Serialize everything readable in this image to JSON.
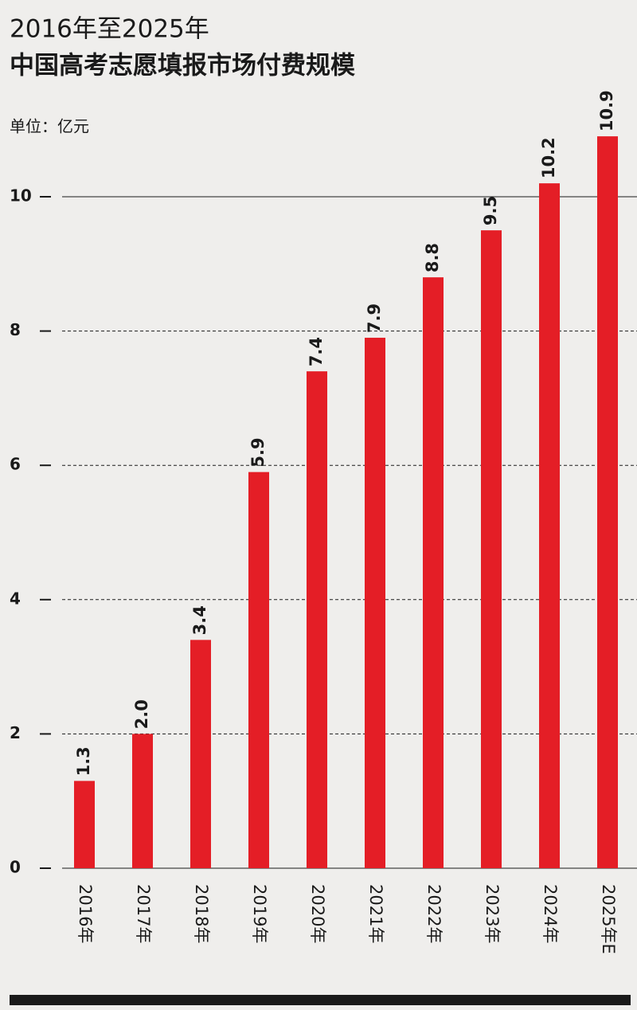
{
  "chart_data": {
    "type": "bar",
    "title": "2016年至2025年",
    "subtitle": "中国高考志愿填报市场付费规模",
    "unit": "单位：亿元",
    "categories": [
      "2016年",
      "2017年",
      "2018年",
      "2019年",
      "2020年",
      "2021年",
      "2022年",
      "2023年",
      "2024年",
      "2025年E"
    ],
    "values": [
      1.3,
      2,
      3.4,
      5.9,
      7.4,
      7.9,
      8.8,
      9.5,
      10.2,
      10.9
    ],
    "value_labels": [
      "1.3",
      "2.0",
      "3.4",
      "5.9",
      "7.4",
      "7.9",
      "8.8",
      "9.5",
      "10.2",
      "10.9"
    ],
    "color": "#e41e26",
    "ylim": [
      0,
      11
    ],
    "yticks": [
      0,
      2,
      4,
      6,
      8,
      10
    ],
    "grid": true
  }
}
